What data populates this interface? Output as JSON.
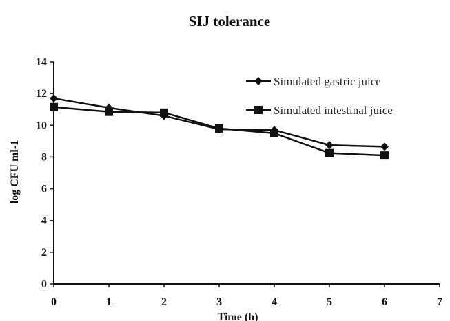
{
  "chart_data": {
    "type": "line",
    "title": "SIJ tolerance",
    "xlabel": "Time (h)",
    "ylabel": "log CFU ml-1",
    "x": [
      0,
      1,
      2,
      3,
      4,
      5,
      6
    ],
    "xlim": [
      0,
      7
    ],
    "ylim": [
      0,
      14
    ],
    "xticks": [
      "0",
      "1",
      "2",
      "3",
      "4",
      "5",
      "6",
      "7"
    ],
    "yticks": [
      "0",
      "2",
      "4",
      "6",
      "8",
      "10",
      "12",
      "14"
    ],
    "grid": false,
    "legend_position": "top-right",
    "series": [
      {
        "name": "Simulated gastric juice",
        "marker": "diamond",
        "color": "#111111",
        "values": [
          11.7,
          11.1,
          10.6,
          9.75,
          9.7,
          8.75,
          8.65
        ]
      },
      {
        "name": "Simulated intestinal juice",
        "marker": "square",
        "color": "#111111",
        "values": [
          11.15,
          10.85,
          10.8,
          9.8,
          9.5,
          8.25,
          8.1
        ]
      }
    ]
  }
}
